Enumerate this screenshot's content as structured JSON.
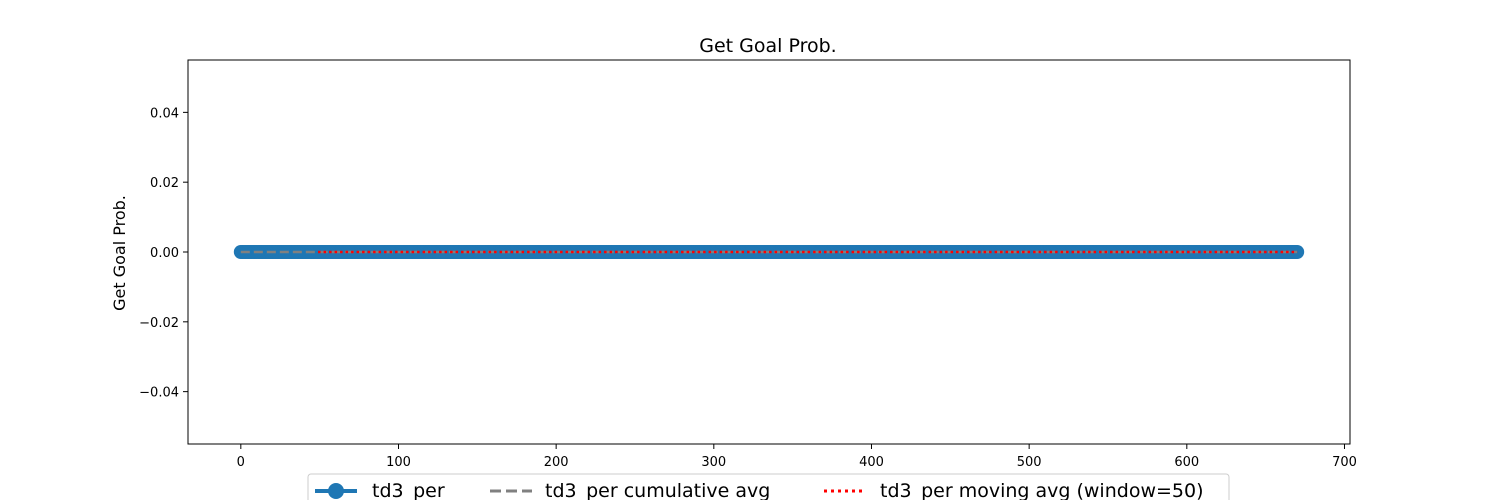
{
  "chart_data": {
    "type": "line",
    "title": "Get Goal Prob.",
    "xlabel": "",
    "ylabel": "Get Goal Prob.",
    "xlim": [
      -33.5,
      703.5
    ],
    "ylim": [
      -0.055,
      0.055
    ],
    "x_ticks": [
      0,
      100,
      200,
      300,
      400,
      500,
      600,
      700
    ],
    "y_ticks": [
      -0.04,
      -0.02,
      0.0,
      0.02,
      0.04
    ],
    "x_tick_labels": [
      "0",
      "100",
      "200",
      "300",
      "400",
      "500",
      "600",
      "700"
    ],
    "y_tick_labels": [
      "−0.04",
      "−0.02",
      "0.00",
      "0.02",
      "0.04"
    ],
    "grid": false,
    "legend_position": "bottom-center",
    "series": [
      {
        "name": "td3_per",
        "style": "solid-markers",
        "color": "#1f77b4",
        "x_start": 0,
        "x_end": 670,
        "x_step": 1,
        "constant_value": 0.0
      },
      {
        "name": "td3_per cumulative avg",
        "style": "dashed",
        "color": "#808080",
        "x_start": 0,
        "x_end": 670,
        "constant_value": 0.0
      },
      {
        "name": "td3_per moving avg (window=50)",
        "style": "dotted",
        "color": "#ff0000",
        "x_start": 49,
        "x_end": 670,
        "constant_value": 0.0
      }
    ]
  }
}
